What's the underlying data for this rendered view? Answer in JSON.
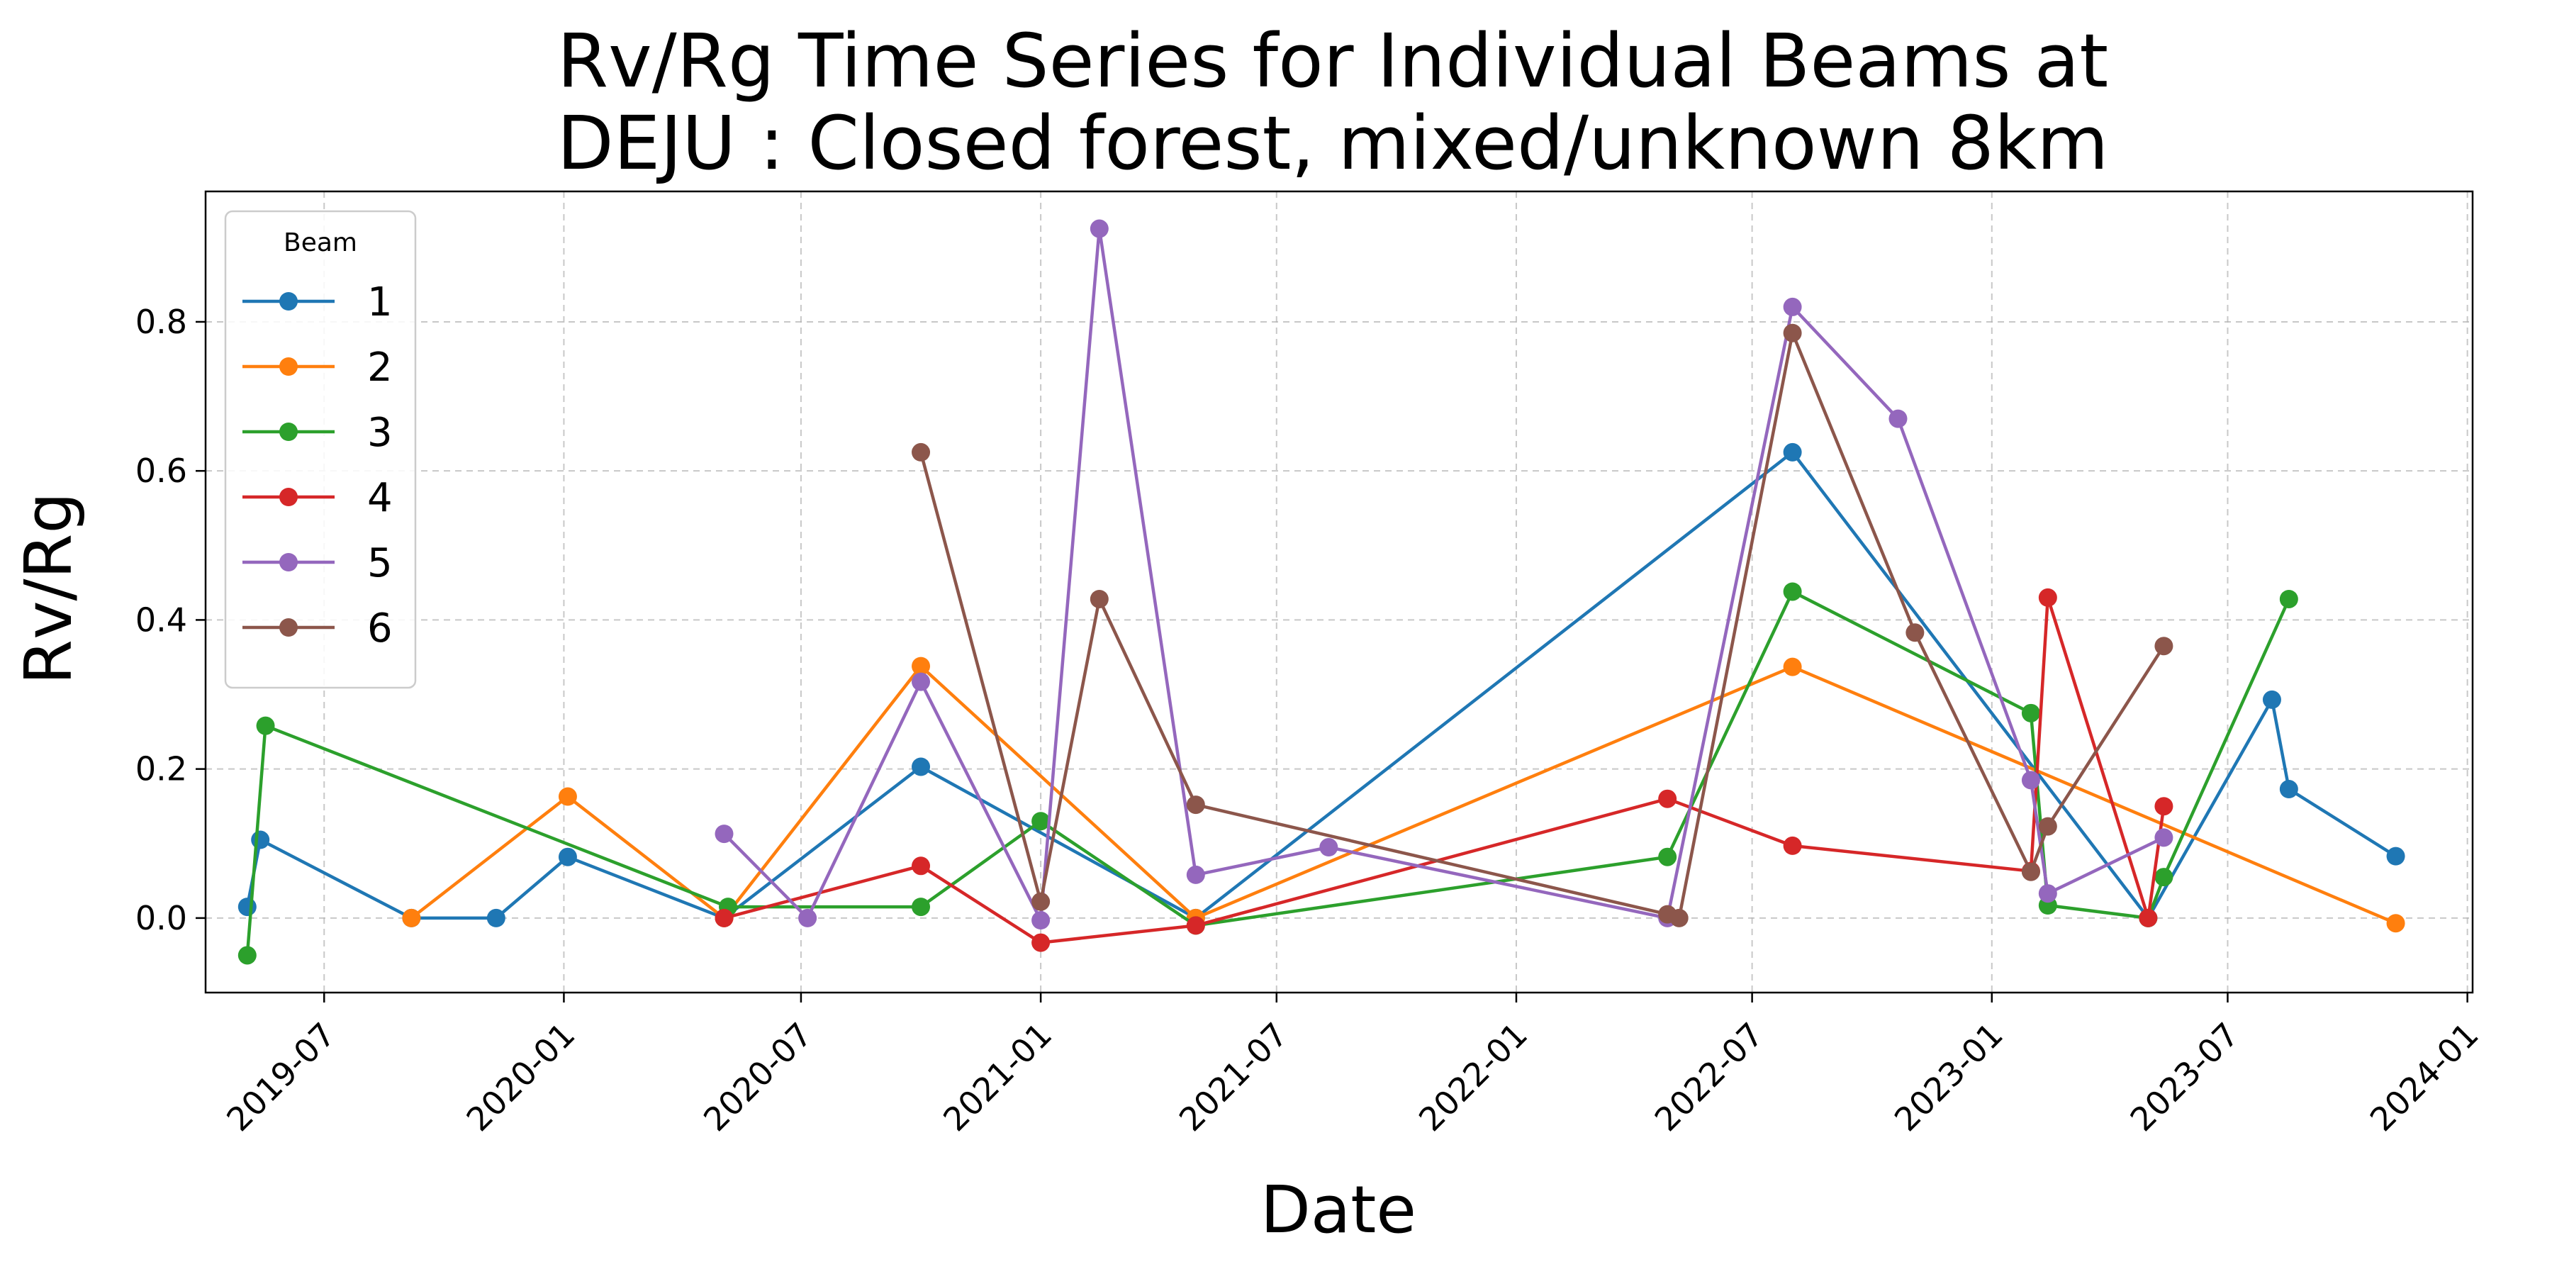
{
  "chart_data": {
    "type": "line",
    "title": "Rv/Rg Time Series for Individual Beams at\nDEJU : Closed forest, mixed/unknown 8km",
    "xlabel": "Date",
    "ylabel": "Rv/Rg",
    "xlim": [
      "2019-04-01",
      "2024-01-05"
    ],
    "ylim": [
      -0.1,
      0.975
    ],
    "x_ticks": [
      "2019-07",
      "2020-01",
      "2020-07",
      "2021-01",
      "2021-07",
      "2022-01",
      "2022-07",
      "2023-01",
      "2023-07",
      "2024-01"
    ],
    "y_ticks": [
      0.0,
      0.2,
      0.4,
      0.6,
      0.8
    ],
    "y_tick_labels": [
      "0.0",
      "0.2",
      "0.4",
      "0.6",
      "0.8"
    ],
    "grid": true,
    "legend": {
      "title": "Beam",
      "placement": "top-left"
    },
    "series": [
      {
        "name": "1",
        "color": "#1f77b4",
        "points": [
          [
            "2019-05-03",
            0.015
          ],
          [
            "2019-05-13",
            0.105
          ],
          [
            "2019-09-06",
            0.0
          ],
          [
            "2019-11-10",
            0.0
          ],
          [
            "2020-01-04",
            0.082
          ],
          [
            "2020-05-03",
            0.0
          ],
          [
            "2020-10-01",
            0.203
          ],
          [
            "2021-04-30",
            0.0
          ],
          [
            "2022-08-01",
            0.625
          ],
          [
            "2023-05-01",
            0.0
          ],
          [
            "2023-08-04",
            0.293
          ],
          [
            "2023-08-17",
            0.173
          ],
          [
            "2023-11-07",
            0.083
          ]
        ]
      },
      {
        "name": "2",
        "color": "#ff7f0e",
        "points": [
          [
            "2019-09-06",
            0.0
          ],
          [
            "2020-01-04",
            0.163
          ],
          [
            "2020-05-03",
            0.0
          ],
          [
            "2020-10-01",
            0.338
          ],
          [
            "2021-04-30",
            0.0
          ],
          [
            "2022-08-01",
            0.337
          ],
          [
            "2023-11-07",
            -0.007
          ]
        ]
      },
      {
        "name": "3",
        "color": "#2ca02c",
        "points": [
          [
            "2019-05-03",
            -0.05
          ],
          [
            "2019-05-17",
            0.258
          ],
          [
            "2020-05-06",
            0.015
          ],
          [
            "2020-10-01",
            0.015
          ],
          [
            "2021-01-01",
            0.13
          ],
          [
            "2021-04-30",
            -0.01
          ],
          [
            "2022-04-27",
            0.082
          ],
          [
            "2022-08-01",
            0.438
          ],
          [
            "2023-01-31",
            0.275
          ],
          [
            "2023-02-13",
            0.017
          ],
          [
            "2023-05-01",
            0.0
          ],
          [
            "2023-05-13",
            0.055
          ],
          [
            "2023-08-17",
            0.428
          ]
        ]
      },
      {
        "name": "4",
        "color": "#d62728",
        "points": [
          [
            "2020-05-03",
            0.0
          ],
          [
            "2020-10-01",
            0.07
          ],
          [
            "2021-01-01",
            -0.033
          ],
          [
            "2021-04-30",
            -0.01
          ],
          [
            "2022-04-27",
            0.16
          ],
          [
            "2022-08-01",
            0.097
          ],
          [
            "2023-01-31",
            0.063
          ],
          [
            "2023-02-13",
            0.43
          ],
          [
            "2023-05-01",
            0.0
          ],
          [
            "2023-05-13",
            0.15
          ]
        ]
      },
      {
        "name": "5",
        "color": "#9467bd",
        "points": [
          [
            "2020-05-03",
            0.113
          ],
          [
            "2020-07-06",
            0.0
          ],
          [
            "2020-10-01",
            0.317
          ],
          [
            "2021-01-01",
            -0.003
          ],
          [
            "2021-02-15",
            0.925
          ],
          [
            "2021-04-30",
            0.058
          ],
          [
            "2021-08-10",
            0.095
          ],
          [
            "2022-04-27",
            0.0
          ],
          [
            "2022-08-01",
            0.82
          ],
          [
            "2022-10-21",
            0.67
          ],
          [
            "2023-01-31",
            0.185
          ],
          [
            "2023-02-13",
            0.033
          ],
          [
            "2023-05-13",
            0.108
          ]
        ]
      },
      {
        "name": "6",
        "color": "#8c564b",
        "points": [
          [
            "2020-10-01",
            0.625
          ],
          [
            "2021-01-01",
            0.022
          ],
          [
            "2021-02-15",
            0.428
          ],
          [
            "2021-04-30",
            0.152
          ],
          [
            "2022-04-27",
            0.005
          ],
          [
            "2022-05-06",
            0.0
          ],
          [
            "2022-08-01",
            0.785
          ],
          [
            "2022-11-03",
            0.383
          ],
          [
            "2023-01-31",
            0.062
          ],
          [
            "2023-02-13",
            0.123
          ],
          [
            "2023-05-13",
            0.365
          ]
        ]
      }
    ]
  }
}
